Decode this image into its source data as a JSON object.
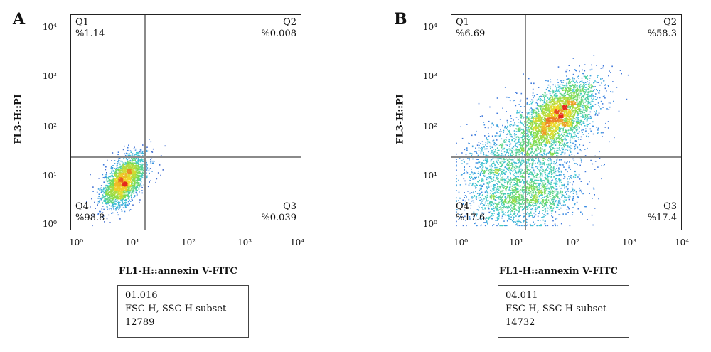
{
  "chart_data": [
    {
      "type": "scatter",
      "panel": "A",
      "xlabel": "FL1-H::annexin V-FITC",
      "ylabel": "FL3-H::PI",
      "xscale": "log",
      "yscale": "log",
      "xlim": [
        1,
        10000
      ],
      "ylim": [
        1,
        10000
      ],
      "x_ticks": [
        "10⁰",
        "10¹",
        "10²",
        "10³",
        "10⁴"
      ],
      "y_ticks": [
        "10⁴",
        "10³",
        "10²",
        "10¹",
        "10⁰"
      ],
      "gate": {
        "x": 20,
        "y": 20
      },
      "quadrants": [
        {
          "name": "Q1",
          "value": "%1.14"
        },
        {
          "name": "Q2",
          "value": "%0.008"
        },
        {
          "name": "Q3",
          "value": "%0.039"
        },
        {
          "name": "Q4",
          "value": "%98.8"
        }
      ],
      "info": [
        "01.016",
        "FSC-H, SSC-H subset",
        "12789"
      ],
      "populations": [
        {
          "cx": 7,
          "cy": 7,
          "sx": 0.2,
          "sy": 0.26,
          "rho": 0.55,
          "n": 2200
        }
      ]
    },
    {
      "type": "scatter",
      "panel": "B",
      "xlabel": "FL1-H::annexin V-FITC",
      "ylabel": "FL3-H::PI",
      "xscale": "log",
      "yscale": "log",
      "xlim": [
        1,
        10000
      ],
      "ylim": [
        1,
        10000
      ],
      "x_ticks": [
        "10⁰",
        "10¹",
        "10²",
        "10³",
        "10⁴"
      ],
      "y_ticks": [
        "10⁴",
        "10³",
        "10²",
        "10¹",
        "10⁰"
      ],
      "gate": {
        "x": 20,
        "y": 20
      },
      "quadrants": [
        {
          "name": "Q1",
          "value": "%6.69"
        },
        {
          "name": "Q2",
          "value": "%58.3"
        },
        {
          "name": "Q3",
          "value": "%17.4"
        },
        {
          "name": "Q4",
          "value": "%17.6"
        }
      ],
      "info": [
        "04.011",
        "FSC-H, SSC-H subset",
        "14732"
      ],
      "populations": [
        {
          "cx": 70,
          "cy": 150,
          "sx": 0.35,
          "sy": 0.35,
          "rho": 0.55,
          "n": 2400
        },
        {
          "cx": 22,
          "cy": 30,
          "sx": 0.55,
          "sy": 0.5,
          "rho": 0.4,
          "n": 1500
        },
        {
          "cx": 12,
          "cy": 3,
          "sx": 0.45,
          "sy": 0.3,
          "rho": 0.1,
          "n": 900
        },
        {
          "cx": 4,
          "cy": 10,
          "sx": 0.3,
          "sy": 0.4,
          "rho": 0.1,
          "n": 400
        },
        {
          "cx": 40,
          "cy": 4,
          "sx": 0.35,
          "sy": 0.25,
          "rho": 0.0,
          "n": 500
        }
      ]
    }
  ]
}
